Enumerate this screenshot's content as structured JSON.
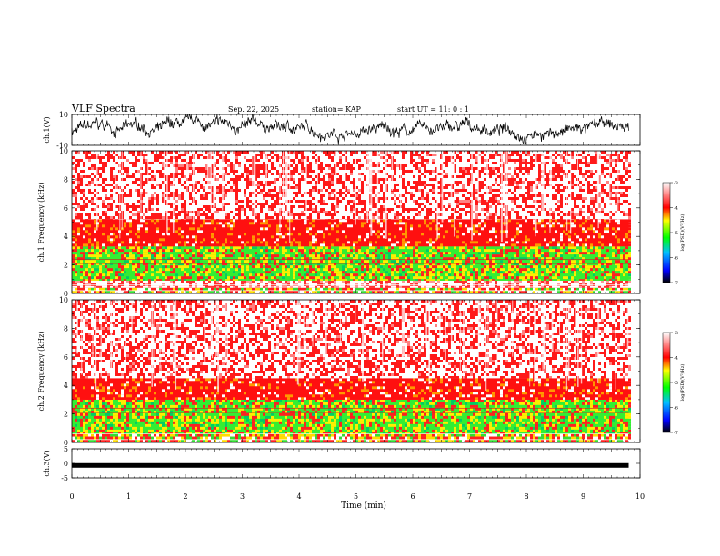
{
  "header": {
    "title": "VLF Spectra",
    "date": "Sep. 22, 2025",
    "station": "station= KAP",
    "start": "start  UT =   11: 0  : 1"
  },
  "chart_data": [
    {
      "type": "line",
      "name": "ch1-waveform",
      "ylabel": "ch.1(V)",
      "ylim": [
        -10,
        10
      ],
      "yticks": [
        "10",
        "-10"
      ],
      "xlim": [
        0,
        10
      ],
      "data_end": 9.8,
      "color": "#000000"
    },
    {
      "type": "heatmap",
      "name": "ch1-spectrogram",
      "ylabel": "ch.1 Frequency  (kHz)",
      "ylim": [
        0,
        10
      ],
      "yticks": [
        "0",
        "2",
        "4",
        "6",
        "8",
        "10"
      ],
      "xlim": [
        0,
        10
      ],
      "data_end": 9.8,
      "bands_khz": [
        {
          "from": 0,
          "to": 0.4,
          "level": "mixed"
        },
        {
          "from": 0.4,
          "to": 0.9,
          "level": "white-lines"
        },
        {
          "from": 0.9,
          "to": 3.3,
          "level": "green-yellow"
        },
        {
          "from": 3.3,
          "to": 5.2,
          "level": "red"
        },
        {
          "from": 5.2,
          "to": 10,
          "level": "red-white"
        }
      ],
      "colorbar": {
        "label": "log(PSD)(V²/Hz)",
        "ticks": [
          "-3",
          "-4",
          "-5",
          "-6",
          "-7"
        ],
        "range": [
          -7,
          -3
        ]
      }
    },
    {
      "type": "heatmap",
      "name": "ch2-spectrogram",
      "ylabel": "ch.2 Frequency  (kHz)",
      "ylim": [
        0,
        10
      ],
      "yticks": [
        "0",
        "2",
        "4",
        "6",
        "8",
        "10"
      ],
      "xlim": [
        0,
        10
      ],
      "data_end": 9.8,
      "bands_khz": [
        {
          "from": 0,
          "to": 0.6,
          "level": "mixed"
        },
        {
          "from": 0.6,
          "to": 3.0,
          "level": "green-yellow"
        },
        {
          "from": 3.0,
          "to": 4.5,
          "level": "red"
        },
        {
          "from": 4.5,
          "to": 10,
          "level": "red-white"
        }
      ],
      "colorbar": {
        "label": "log(PSD)(V²/Hz)",
        "ticks": [
          "-3",
          "-4",
          "-5",
          "-6",
          "-7"
        ],
        "range": [
          -7,
          -3
        ]
      }
    },
    {
      "type": "line",
      "name": "ch3-waveform",
      "ylabel": "ch.3(V)",
      "ylim": [
        -5,
        5
      ],
      "yticks": [
        "5",
        "0",
        "-5"
      ],
      "xlim": [
        0,
        10
      ],
      "data_end": 9.8,
      "level_v": -0.7,
      "color": "#000000"
    }
  ],
  "xaxis": {
    "label": "Time  (min)",
    "ticks": [
      "0",
      "1",
      "2",
      "3",
      "4",
      "5",
      "6",
      "7",
      "8",
      "9",
      "10"
    ]
  }
}
